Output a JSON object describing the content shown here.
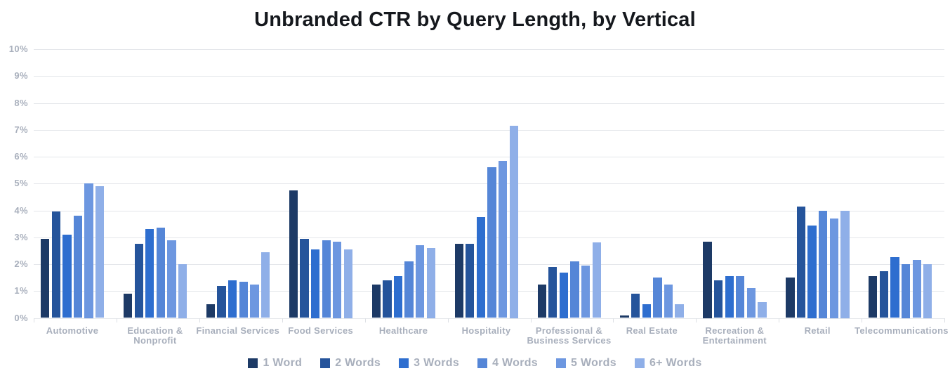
{
  "chart_data": {
    "type": "bar",
    "title": "Unbranded CTR by Query Length, by Vertical",
    "grid": true,
    "legend_position": "bottom",
    "ylim": [
      0,
      10
    ],
    "y_ticks": [
      "0%",
      "1%",
      "2%",
      "3%",
      "4%",
      "5%",
      "6%",
      "7%",
      "8%",
      "9%",
      "10%"
    ],
    "categories": [
      "Automotive",
      "Education & Nonprofit",
      "Financial Services",
      "Food Services",
      "Healthcare",
      "Hospitality",
      "Professional & Business Services",
      "Real Estate",
      "Recreation & Entertainment",
      "Retail",
      "Telecommunications"
    ],
    "series": [
      {
        "name": "1 Word",
        "color": "#1d3a66",
        "values": [
          2.95,
          0.9,
          0.5,
          4.75,
          1.25,
          2.75,
          1.25,
          0.1,
          2.85,
          1.5,
          1.55
        ]
      },
      {
        "name": "2 Words",
        "color": "#25549b",
        "values": [
          3.95,
          2.75,
          1.2,
          2.95,
          1.4,
          2.75,
          1.9,
          0.9,
          1.4,
          4.15,
          1.75
        ]
      },
      {
        "name": "3 Words",
        "color": "#2e6ecf",
        "values": [
          3.1,
          3.3,
          1.4,
          2.55,
          1.55,
          3.75,
          1.7,
          0.5,
          1.55,
          3.45,
          2.25
        ]
      },
      {
        "name": "4 Words",
        "color": "#5586d7",
        "values": [
          3.8,
          3.35,
          1.35,
          2.9,
          2.1,
          5.6,
          2.1,
          1.5,
          1.55,
          4.0,
          2.0
        ]
      },
      {
        "name": "5 Words",
        "color": "#6d97e0",
        "values": [
          5.0,
          2.9,
          1.25,
          2.85,
          2.7,
          5.85,
          1.95,
          1.25,
          1.1,
          3.7,
          2.15
        ]
      },
      {
        "name": "6+ Words",
        "color": "#8fafe8",
        "values": [
          4.9,
          2.0,
          2.45,
          2.55,
          2.6,
          7.15,
          2.8,
          0.5,
          0.6,
          4.0,
          2.0
        ]
      }
    ],
    "colors": {
      "title": "#15181d",
      "axis_text": "#a8afbc",
      "gridline": "#e4e6ea",
      "background": "#ffffff"
    }
  }
}
